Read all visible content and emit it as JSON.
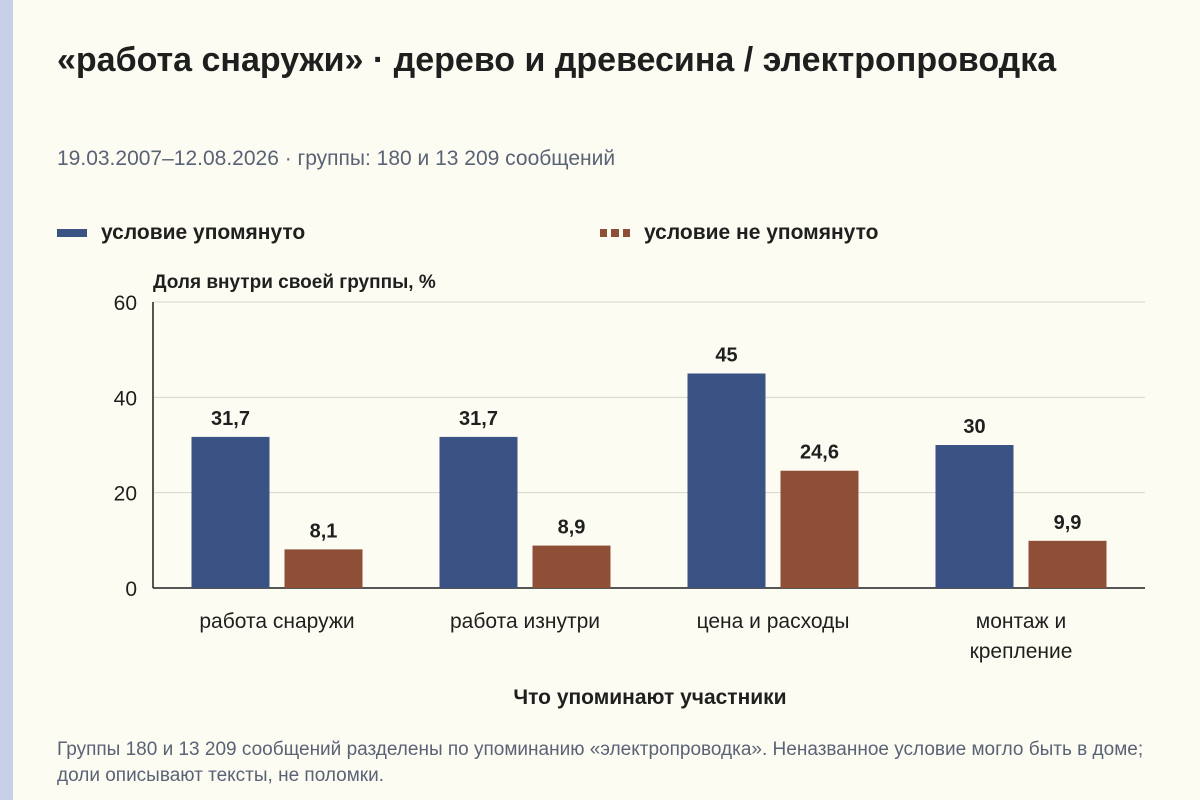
{
  "header": {
    "title": "«работа снаружи» · дерево и древесина / электропроводка",
    "subtitle": "19.03.2007–12.08.2026 · группы: 180 и 13 209 сообщений"
  },
  "footnote": "Группы 180 и 13 209 сообщений разделены по упоминанию «электропроводка». Неназванное условие могло быть в доме; доли описывают тексты, не поломки.",
  "chart_data": {
    "type": "bar",
    "title": "«работа снаружи» · дерево и древесина / электропроводка",
    "subtitle": "19.03.2007–12.08.2026 · группы: 180 и 13 209 сообщений",
    "xlabel": "Что упоминают участники",
    "ylabel": "Доля внутри своей группы, %",
    "ylim": [
      0,
      60
    ],
    "yticks": [
      0,
      20,
      40,
      60
    ],
    "grid": true,
    "legend_position": "top",
    "categories": [
      [
        "работа снаружи"
      ],
      [
        "работа изнутри"
      ],
      [
        "цена и расходы"
      ],
      [
        "монтаж и",
        "крепление"
      ]
    ],
    "series": [
      {
        "name": "условие упомянуто",
        "color": "#3b5285",
        "values": [
          31.7,
          31.7,
          45,
          30
        ],
        "labels": [
          "31,7",
          "31,7",
          "45",
          "30"
        ]
      },
      {
        "name": "условие не упомянуто",
        "color": "#8f4f37",
        "values": [
          8.1,
          8.9,
          24.6,
          9.9
        ],
        "labels": [
          "8,1",
          "8,9",
          "24,6",
          "9,9"
        ]
      }
    ]
  }
}
